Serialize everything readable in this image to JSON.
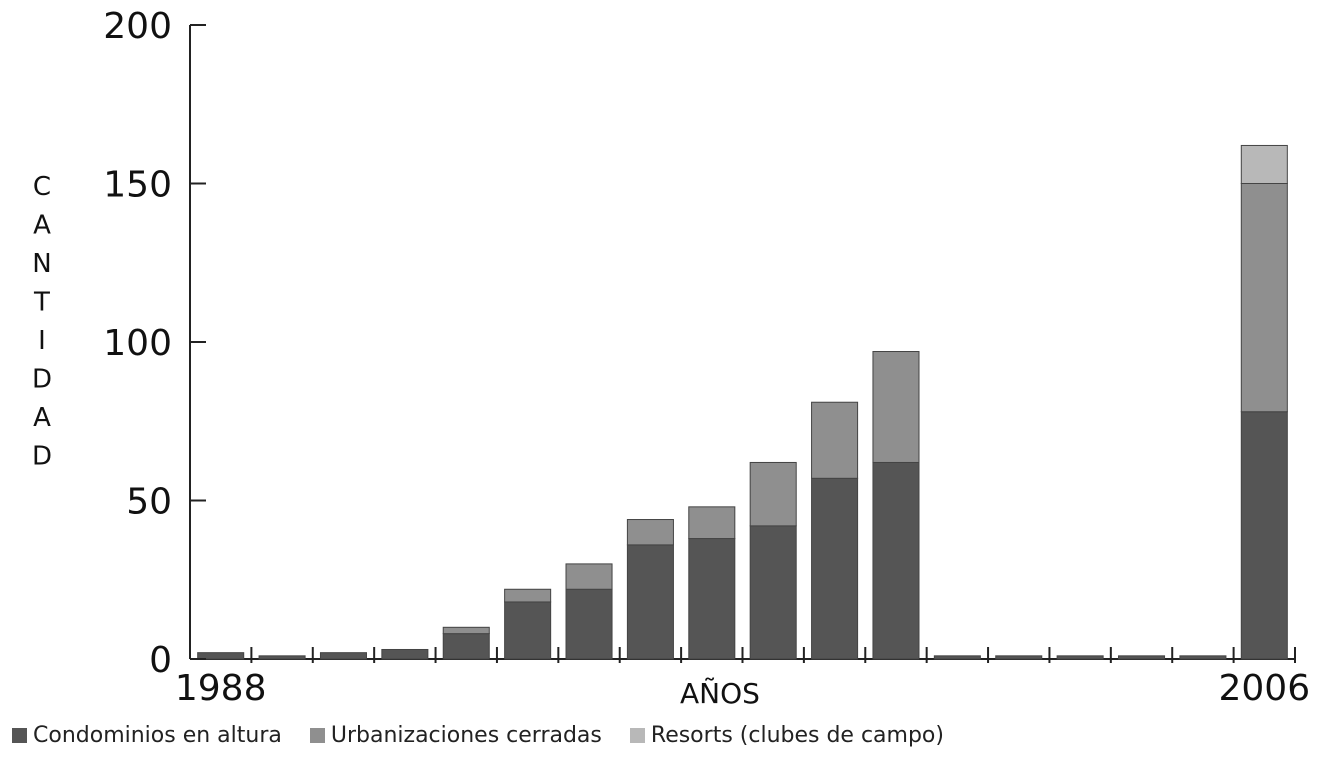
{
  "chart_data": {
    "type": "bar",
    "stacked": true,
    "categories": [
      "1988",
      "",
      "",
      "",
      "",
      "",
      "",
      "",
      "",
      "",
      "",
      "",
      "",
      "",
      "",
      "",
      "",
      "2006"
    ],
    "series": [
      {
        "name": "Condominios en altura",
        "color": "#555555",
        "values": [
          2,
          1,
          2,
          3,
          8,
          18,
          22,
          36,
          38,
          42,
          57,
          62,
          1,
          1,
          1,
          1,
          1,
          78
        ]
      },
      {
        "name": "Urbanizaciones cerradas",
        "color": "#8f8f8f",
        "values": [
          0,
          0,
          0,
          0,
          2,
          4,
          8,
          8,
          10,
          20,
          24,
          35,
          0,
          0,
          0,
          0,
          0,
          72
        ]
      },
      {
        "name": "Resorts (clubes de campo)",
        "color": "#b8b8b8",
        "values": [
          0,
          0,
          0,
          0,
          0,
          0,
          0,
          0,
          0,
          0,
          0,
          0,
          0,
          0,
          0,
          0,
          0,
          12
        ]
      }
    ],
    "yticks": [
      "0",
      "50",
      "100",
      "150",
      "200"
    ],
    "ylim": [
      0,
      200
    ],
    "ylabel": "CANTIDAD",
    "xlabel": "AÑOS",
    "xtick_labels": [
      {
        "index": 0,
        "label": "1988"
      },
      {
        "index": 17,
        "label": "2006"
      }
    ],
    "grid": false,
    "legend_position": "bottom"
  }
}
